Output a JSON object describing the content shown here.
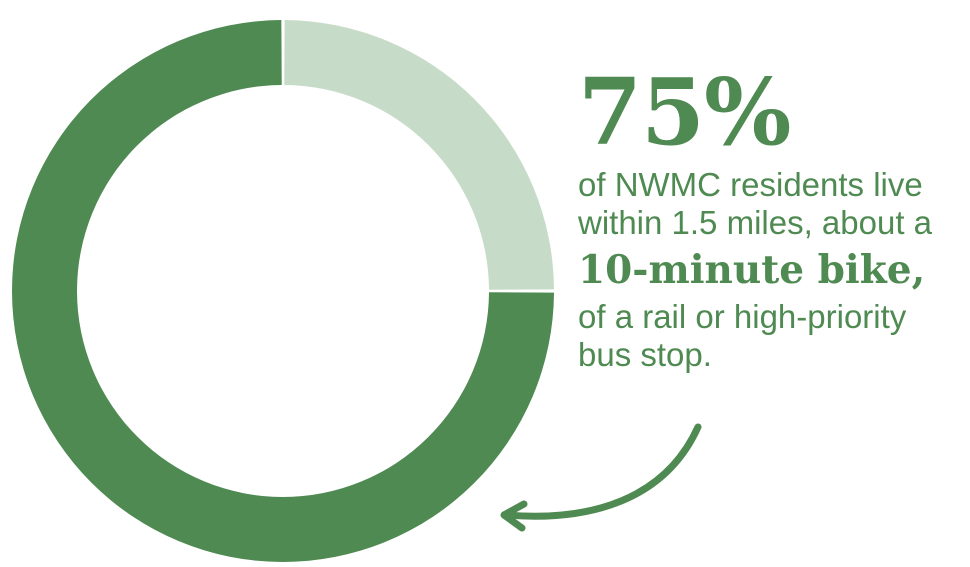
{
  "colors": {
    "primary": "#4e8a51",
    "secondary": "#c7dcc8",
    "background": "#ffffff"
  },
  "chart_data": {
    "type": "pie",
    "style": "donut",
    "slices": [
      {
        "value": 75,
        "color": "#4e8a51"
      },
      {
        "value": 25,
        "color": "#c7dcc8"
      }
    ],
    "start": "top",
    "direction": "counterclockwise"
  },
  "callout": {
    "big_stat": "75%",
    "line1": "of NWMC residents live",
    "line2": "within 1.5 miles, about a",
    "emphasis": "10-minute bike,",
    "line3": "of a rail or high-priority",
    "line4": "bus stop."
  }
}
